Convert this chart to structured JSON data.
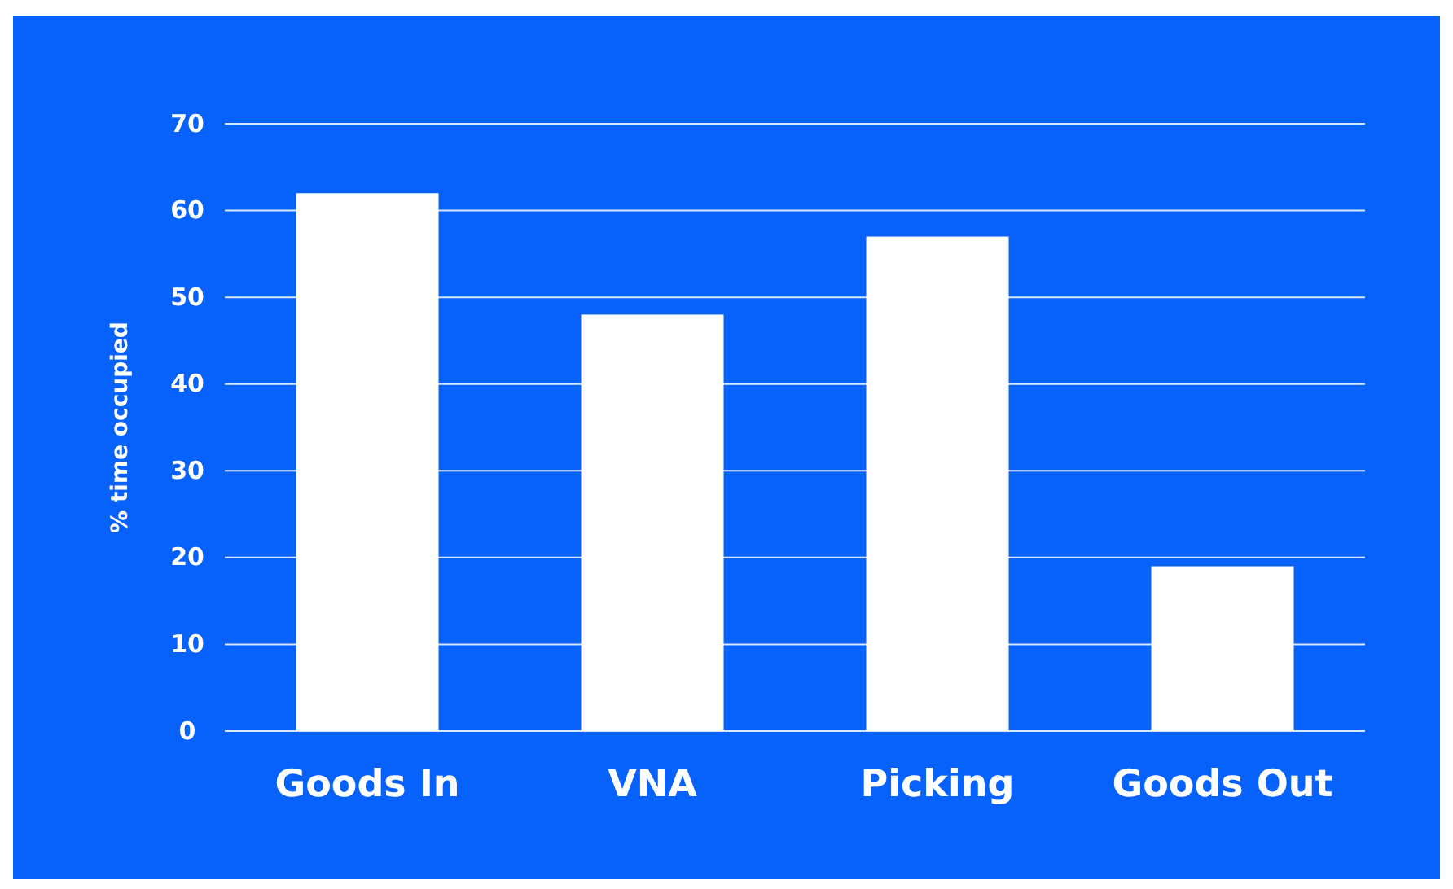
{
  "chart_data": {
    "type": "bar",
    "ylabel": "% time occupied",
    "categories": [
      "Goods In",
      "VNA",
      "Picking",
      "Goods Out"
    ],
    "values": [
      62,
      48,
      57,
      19
    ],
    "color": "#ffffff",
    "ylim": [
      0,
      70
    ],
    "yticks": [
      0,
      10,
      20,
      30,
      40,
      50,
      60,
      70
    ],
    "grid": "y"
  }
}
